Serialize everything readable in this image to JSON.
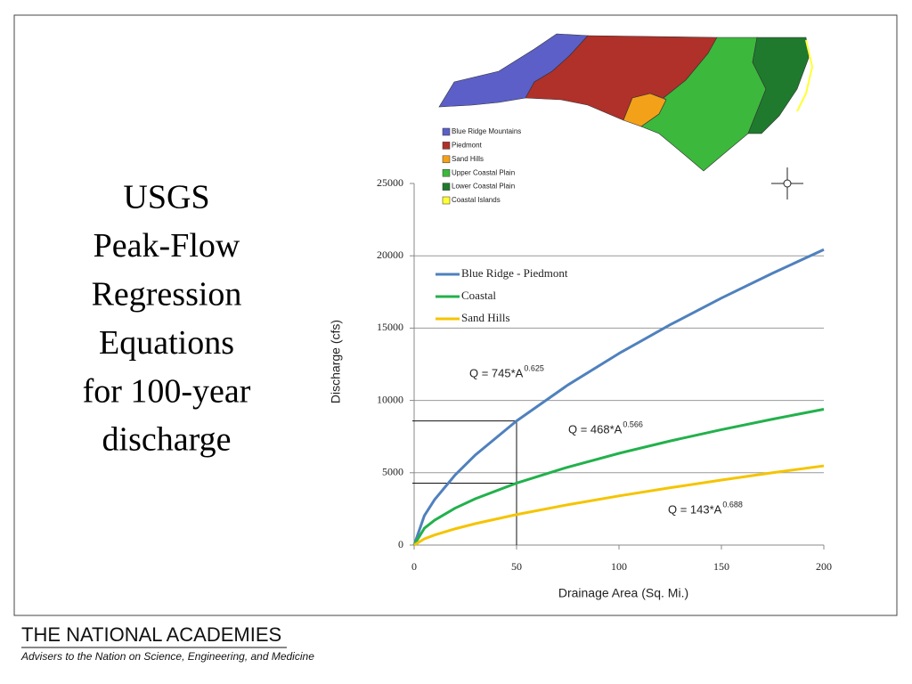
{
  "slide": {
    "title_lines": [
      "USGS",
      "Peak-Flow",
      "Regression",
      "Equations",
      "for 100-year",
      "discharge"
    ]
  },
  "map": {
    "legend": [
      {
        "label": "Blue Ridge Mountains",
        "color": "#5b5fc7"
      },
      {
        "label": "Piedmont",
        "color": "#b0302a"
      },
      {
        "label": "Sand Hills",
        "color": "#f4a11a"
      },
      {
        "label": "Upper Coastal Plain",
        "color": "#3cb83c"
      },
      {
        "label": "Lower Coastal Plain",
        "color": "#1f7a2e"
      },
      {
        "label": "Coastal Islands",
        "color": "#ffff33"
      }
    ]
  },
  "chart_data": {
    "type": "line",
    "x_label": "Drainage Area (Sq. Mi.)",
    "y_label": "Discharge (cfs)",
    "x": [
      0,
      5,
      10,
      20,
      30,
      50,
      75,
      100,
      125,
      150,
      175,
      200
    ],
    "series": [
      {
        "name": "Blue Ridge - Piedmont",
        "color": "#4f81bd",
        "values": [
          0,
          2037,
          3142,
          4843,
          6243,
          8583,
          11065,
          13247,
          15234,
          17075,
          18797,
          20430
        ]
      },
      {
        "name": "Coastal",
        "color": "#22b14c",
        "values": [
          0,
          1164,
          1723,
          2552,
          3209,
          4283,
          5387,
          6343,
          7197,
          7979,
          8706,
          9390
        ]
      },
      {
        "name": "Sand Hills",
        "color": "#f5c400",
        "values": [
          0,
          433,
          697,
          1123,
          1485,
          2109,
          2787,
          3398,
          3963,
          4495,
          5002,
          5476
        ]
      }
    ],
    "annotations": [
      {
        "text": "Q = 745*A",
        "exponent": "0.625"
      },
      {
        "text": "Q = 468*A",
        "exponent": "0.566"
      },
      {
        "text": "Q = 143*A",
        "exponent": "0.688"
      }
    ],
    "xlim": [
      0,
      200
    ],
    "xticks": [
      0,
      50,
      100,
      150,
      200
    ],
    "ylim": [
      0,
      25000
    ],
    "yticks": [
      0,
      5000,
      10000,
      15000,
      20000,
      25000
    ],
    "grid": true
  },
  "footer": {
    "title": "THE NATIONAL ACADEMIES",
    "subtitle": "Advisers to the Nation on Science, Engineering, and Medicine"
  }
}
